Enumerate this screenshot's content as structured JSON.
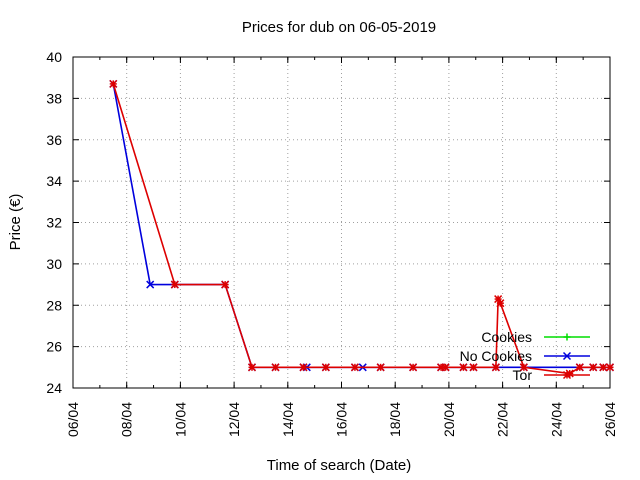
{
  "chart_data": {
    "type": "line",
    "title": "Prices for dub on 06-05-2019",
    "xlabel": "Time of search (Date)",
    "ylabel": "Price (€)",
    "x_axis": {
      "type": "date",
      "range": [
        "2019-04-06",
        "2019-04-26"
      ],
      "ticks": [
        {
          "date": "2019-04-06",
          "label": "06/04"
        },
        {
          "date": "2019-04-08",
          "label": "08/04"
        },
        {
          "date": "2019-04-10",
          "label": "10/04"
        },
        {
          "date": "2019-04-12",
          "label": "12/04"
        },
        {
          "date": "2019-04-14",
          "label": "14/04"
        },
        {
          "date": "2019-04-16",
          "label": "16/04"
        },
        {
          "date": "2019-04-18",
          "label": "18/04"
        },
        {
          "date": "2019-04-20",
          "label": "20/04"
        },
        {
          "date": "2019-04-22",
          "label": "22/04"
        },
        {
          "date": "2019-04-24",
          "label": "24/04"
        },
        {
          "date": "2019-04-26",
          "label": "26/04"
        }
      ]
    },
    "ylim": [
      24,
      40
    ],
    "yticks": [
      24,
      26,
      28,
      30,
      32,
      34,
      36,
      38,
      40
    ],
    "grid": true,
    "legend": "bottom-right",
    "series": [
      {
        "name": "Cookies",
        "color": "#00dd00",
        "marker": "plus",
        "points": []
      },
      {
        "name": "No Cookies",
        "color": "#0000dd",
        "marker": "cross",
        "points": [
          [
            "2019-04-07T12:00",
            38.7
          ],
          [
            "2019-04-08T21:00",
            29.0
          ],
          [
            "2019-04-09T19:00",
            29.0
          ],
          [
            "2019-04-11T16:00",
            29.0
          ],
          [
            "2019-04-12T16:00",
            25.0
          ],
          [
            "2019-04-13T13:00",
            25.0
          ],
          [
            "2019-04-14T14:00",
            25.0
          ],
          [
            "2019-04-14T17:00",
            25.0
          ],
          [
            "2019-04-15T10:00",
            25.0
          ],
          [
            "2019-04-16T12:00",
            25.0
          ],
          [
            "2019-04-16T19:00",
            25.0
          ],
          [
            "2019-04-17T11:00",
            25.0
          ],
          [
            "2019-04-18T16:00",
            25.0
          ],
          [
            "2019-04-19T17:00",
            25.0
          ],
          [
            "2019-04-19T21:00",
            25.0
          ],
          [
            "2019-04-20T13:00",
            25.0
          ],
          [
            "2019-04-20T22:00",
            25.0
          ],
          [
            "2019-04-21T18:00",
            25.0
          ],
          [
            "2019-04-22T19:00",
            25.0
          ],
          [
            "2019-04-24T21:00",
            25.0
          ],
          [
            "2019-04-25T09:00",
            25.0
          ],
          [
            "2019-04-25T18:00",
            25.0
          ],
          [
            "2019-04-26T00:00",
            25.0
          ]
        ]
      },
      {
        "name": "Tor",
        "color": "#dd0000",
        "marker": "star",
        "points": [
          [
            "2019-04-07T12:00",
            38.7
          ],
          [
            "2019-04-09T19:00",
            29.0
          ],
          [
            "2019-04-11T16:00",
            29.0
          ],
          [
            "2019-04-12T16:00",
            25.0
          ],
          [
            "2019-04-13T13:00",
            25.0
          ],
          [
            "2019-04-14T14:00",
            25.0
          ],
          [
            "2019-04-15T10:00",
            25.0
          ],
          [
            "2019-04-16T12:00",
            25.0
          ],
          [
            "2019-04-17T11:00",
            25.0
          ],
          [
            "2019-04-18T16:00",
            25.0
          ],
          [
            "2019-04-19T17:00",
            25.0
          ],
          [
            "2019-04-19T21:00",
            25.0
          ],
          [
            "2019-04-20T13:00",
            25.0
          ],
          [
            "2019-04-20T22:00",
            25.0
          ],
          [
            "2019-04-21T18:00",
            25.0
          ],
          [
            "2019-04-21T20:00",
            28.3
          ],
          [
            "2019-04-21T22:00",
            28.1
          ],
          [
            "2019-04-22T19:00",
            25.0
          ],
          [
            "2019-04-24T12:00",
            24.7
          ],
          [
            "2019-04-24T21:00",
            25.0
          ],
          [
            "2019-04-25T09:00",
            25.0
          ],
          [
            "2019-04-25T18:00",
            25.0
          ],
          [
            "2019-04-26T00:00",
            25.0
          ]
        ]
      }
    ]
  }
}
